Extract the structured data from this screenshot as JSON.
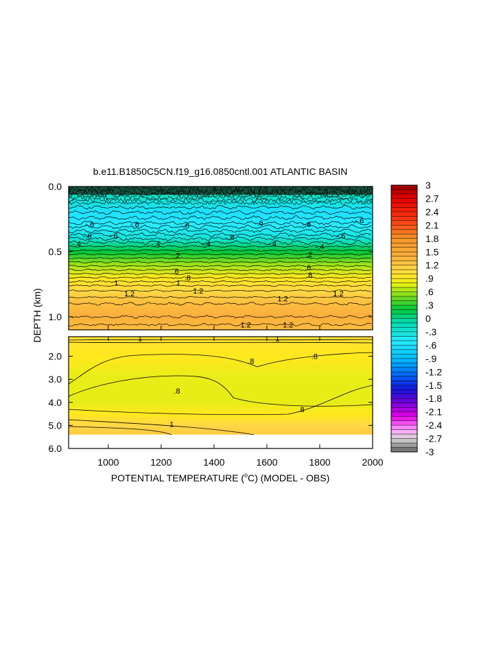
{
  "chart_data": {
    "type": "heatmap",
    "title": "b.e11.B1850C5CN.f19_g16.0850cntl.001 ATLANTIC BASIN",
    "xlabel": "POTENTIAL TEMPERATURE (°C) (MODEL - OBS)",
    "ylabel": "DEPTH (km)",
    "xlim": [
      850,
      2000
    ],
    "x_ticks": [
      "1000",
      "1200",
      "1400",
      "1600",
      "1800",
      "2000"
    ],
    "x_tick_values": [
      1000,
      1200,
      1400,
      1600,
      1800,
      2000
    ],
    "upper_panel": {
      "ylim": [
        0.0,
        1.1
      ],
      "y_ticks": [
        "0.0",
        "0.5",
        "1.0"
      ],
      "y_tick_values": [
        0.0,
        0.5,
        1.0
      ],
      "depth_profile": [
        {
          "depth": 0.0,
          "value": 0.0
        },
        {
          "depth": 0.1,
          "value": -0.3
        },
        {
          "depth": 0.2,
          "value": -0.6
        },
        {
          "depth": 0.3,
          "value": -0.5
        },
        {
          "depth": 0.4,
          "value": -0.3
        },
        {
          "depth": 0.5,
          "value": 0.2
        },
        {
          "depth": 0.6,
          "value": 0.6
        },
        {
          "depth": 0.7,
          "value": 0.9
        },
        {
          "depth": 0.8,
          "value": 1.1
        },
        {
          "depth": 0.9,
          "value": 1.25
        },
        {
          "depth": 1.0,
          "value": 1.35
        },
        {
          "depth": 1.1,
          "value": 1.3
        }
      ],
      "contour_labels": [
        {
          "x": 930,
          "depth": 0.29,
          "text": "-.6"
        },
        {
          "x": 1100,
          "depth": 0.29,
          "text": "-.6"
        },
        {
          "x": 1290,
          "depth": 0.3,
          "text": "-.6"
        },
        {
          "x": 1570,
          "depth": 0.28,
          "text": "-.6"
        },
        {
          "x": 1750,
          "depth": 0.29,
          "text": "-.6"
        },
        {
          "x": 1950,
          "depth": 0.26,
          "text": "-.6"
        },
        {
          "x": 920,
          "depth": 0.38,
          "text": "-.6"
        },
        {
          "x": 1020,
          "depth": 0.38,
          "text": "-.6"
        },
        {
          "x": 1460,
          "depth": 0.39,
          "text": "-.6"
        },
        {
          "x": 1880,
          "depth": 0.38,
          "text": "-.6"
        },
        {
          "x": 880,
          "depth": 0.44,
          "text": "-.4"
        },
        {
          "x": 1180,
          "depth": 0.44,
          "text": "-.4"
        },
        {
          "x": 1370,
          "depth": 0.44,
          "text": "-.4"
        },
        {
          "x": 1620,
          "depth": 0.44,
          "text": "-.4"
        },
        {
          "x": 1800,
          "depth": 0.46,
          "text": "-.4"
        },
        {
          "x": 1260,
          "depth": 0.53,
          "text": ".2"
        },
        {
          "x": 1760,
          "depth": 0.52,
          "text": ".2"
        },
        {
          "x": 1255,
          "depth": 0.65,
          "text": ".6"
        },
        {
          "x": 1755,
          "depth": 0.62,
          "text": ".6"
        },
        {
          "x": 1300,
          "depth": 0.7,
          "text": ".8"
        },
        {
          "x": 1760,
          "depth": 0.68,
          "text": ".8"
        },
        {
          "x": 1030,
          "depth": 0.74,
          "text": "1"
        },
        {
          "x": 1265,
          "depth": 0.74,
          "text": "1"
        },
        {
          "x": 1080,
          "depth": 0.82,
          "text": "1.2"
        },
        {
          "x": 1340,
          "depth": 0.8,
          "text": "1.2"
        },
        {
          "x": 1660,
          "depth": 0.86,
          "text": "1.2"
        },
        {
          "x": 1870,
          "depth": 0.82,
          "text": "1.2"
        },
        {
          "x": 1520,
          "depth": 1.06,
          "text": "1.2"
        },
        {
          "x": 1680,
          "depth": 1.06,
          "text": "1.2"
        }
      ]
    },
    "lower_panel": {
      "ylim": [
        1.15,
        6.0
      ],
      "y_ticks": [
        "2.0",
        "3.0",
        "4.0",
        "5.0",
        "6.0"
      ],
      "y_tick_values": [
        2.0,
        3.0,
        4.0,
        5.0,
        6.0
      ],
      "data_bottom_depth": 5.4,
      "depth_profile": [
        {
          "depth": 1.2,
          "value": 1.0
        },
        {
          "depth": 2.0,
          "value": 0.85
        },
        {
          "depth": 3.0,
          "value": 0.78
        },
        {
          "depth": 4.0,
          "value": 0.8
        },
        {
          "depth": 4.5,
          "value": 0.9
        },
        {
          "depth": 5.0,
          "value": 1.05
        },
        {
          "depth": 5.4,
          "value": 1.15
        }
      ],
      "contour_labels": [
        {
          "x": 1120,
          "depth": 1.23,
          "text": "1"
        },
        {
          "x": 1640,
          "depth": 1.23,
          "text": "1"
        },
        {
          "x": 1540,
          "depth": 2.2,
          "text": ".8"
        },
        {
          "x": 1780,
          "depth": 2.0,
          "text": ".8"
        },
        {
          "x": 1260,
          "depth": 3.5,
          "text": ".8"
        },
        {
          "x": 1730,
          "depth": 4.3,
          "text": ".8"
        },
        {
          "x": 1240,
          "depth": 4.95,
          "text": "1"
        }
      ]
    },
    "colorbar": {
      "min": -3.0,
      "max": 3.0,
      "step": 0.1,
      "labels": [
        "3",
        "2.7",
        "2.4",
        "2.1",
        "1.8",
        "1.5",
        "1.2",
        ".9",
        ".6",
        ".3",
        "0",
        "-.3",
        "-.6",
        "-.9",
        "-1.2",
        "-1.5",
        "-1.8",
        "-2.1",
        "-2.4",
        "-2.7",
        "-3"
      ],
      "label_values": [
        3,
        2.7,
        2.4,
        2.1,
        1.8,
        1.5,
        1.2,
        0.9,
        0.6,
        0.3,
        0,
        -0.3,
        -0.6,
        -0.9,
        -1.2,
        -1.5,
        -1.8,
        -2.1,
        -2.4,
        -2.7,
        -3
      ]
    }
  }
}
